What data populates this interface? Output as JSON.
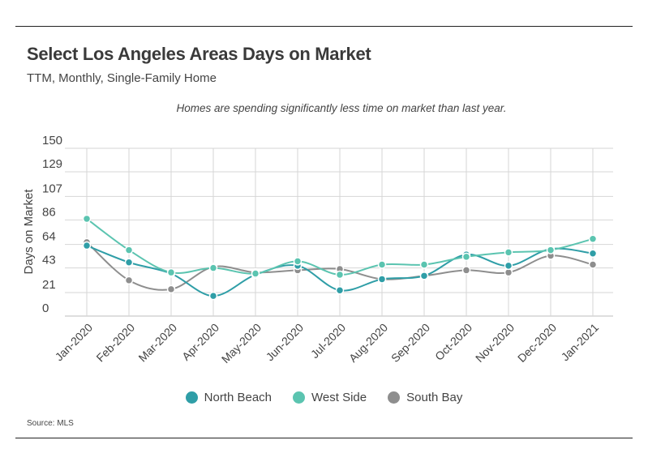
{
  "header": {
    "title": "Select Los Angeles Areas Days on Market",
    "subtitle": "TTM, Monthly, Single-Family Home",
    "annotation": "Homes are spending significantly less time on market than last year."
  },
  "footer": {
    "source": "Source:  MLS"
  },
  "colors": {
    "north_beach": "#2f9ea7",
    "west_side": "#5bc4b0",
    "south_bay": "#8e8e8e"
  },
  "chart_data": {
    "type": "line",
    "title": "Select Los Angeles Areas Days on Market",
    "xlabel": "",
    "ylabel": "Days on Market",
    "ylim": [
      0,
      150
    ],
    "yticks": [
      0,
      21,
      43,
      64,
      86,
      107,
      129,
      150
    ],
    "grid": true,
    "legend_position": "bottom-center",
    "categories": [
      "Jan-2020",
      "Feb-2020",
      "Mar-2020",
      "Apr-2020",
      "May-2020",
      "Jun-2020",
      "Jul-2020",
      "Aug-2020",
      "Sep-2020",
      "Oct-2020",
      "Nov-2020",
      "Dec-2020",
      "Jan-2021"
    ],
    "series": [
      {
        "name": "North Beach",
        "color": "#2f9ea7",
        "values": [
          63,
          48,
          38,
          18,
          37,
          45,
          23,
          33,
          36,
          55,
          45,
          60,
          56
        ]
      },
      {
        "name": "West Side",
        "color": "#5bc4b0",
        "values": [
          87,
          59,
          39,
          43,
          38,
          49,
          37,
          46,
          46,
          53,
          57,
          59,
          69
        ]
      },
      {
        "name": "South Bay",
        "color": "#8e8e8e",
        "values": [
          66,
          32,
          24,
          44,
          39,
          41,
          42,
          33,
          36,
          41,
          39,
          54,
          46
        ]
      }
    ]
  }
}
